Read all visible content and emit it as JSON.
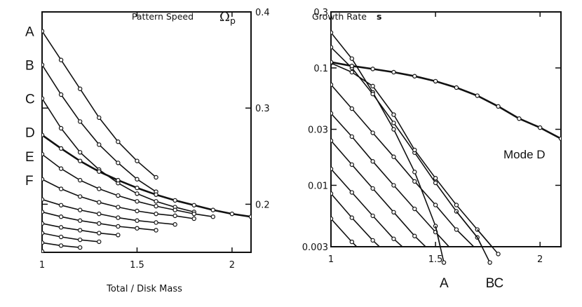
{
  "chart_data": [
    {
      "id": "left",
      "type": "line",
      "title": "Pattern Speed",
      "title_symbol": "Ω",
      "title_subscript": "p",
      "xlabel": "Total / Disk Mass",
      "xlim": [
        1.0,
        2.1
      ],
      "ylim": [
        0.15,
        0.4
      ],
      "y_scale": "linear",
      "x_ticks": [
        {
          "v": 1,
          "label": "1"
        },
        {
          "v": 1.5,
          "label": "1.5"
        },
        {
          "v": 2,
          "label": "2"
        }
      ],
      "y_ticks": [
        {
          "v": 0.2,
          "label": "0.2"
        },
        {
          "v": 0.3,
          "label": "0.3"
        },
        {
          "v": 0.4,
          "label": "0.4"
        }
      ],
      "y_axis_labels_side": "right",
      "series": [
        {
          "name": "A",
          "label_at": 0.38,
          "points": [
            [
              1.0,
              0.38
            ],
            [
              1.1,
              0.35
            ],
            [
              1.2,
              0.32
            ],
            [
              1.3,
              0.29
            ],
            [
              1.4,
              0.265
            ],
            [
              1.5,
              0.245
            ],
            [
              1.6,
              0.228
            ]
          ],
          "markers": true,
          "thick": false
        },
        {
          "name": "B",
          "label_at": 0.345,
          "points": [
            [
              1.0,
              0.345
            ],
            [
              1.1,
              0.314
            ],
            [
              1.2,
              0.286
            ],
            [
              1.3,
              0.262
            ],
            [
              1.4,
              0.243
            ],
            [
              1.5,
              0.226
            ],
            [
              1.6,
              0.213
            ]
          ],
          "markers": true,
          "thick": false
        },
        {
          "name": "C",
          "label_at": 0.31,
          "points": [
            [
              1.0,
              0.31
            ],
            [
              1.1,
              0.279
            ],
            [
              1.2,
              0.254
            ],
            [
              1.3,
              0.236
            ],
            [
              1.4,
              0.222
            ],
            [
              1.5,
              0.211
            ],
            [
              1.6,
              0.203
            ],
            [
              1.7,
              0.197
            ],
            [
              1.8,
              0.192
            ]
          ],
          "markers": true,
          "thick": false
        },
        {
          "name": "D",
          "label_at": 0.275,
          "points": [
            [
              1.0,
              0.272
            ],
            [
              1.1,
              0.258
            ],
            [
              1.2,
              0.245
            ],
            [
              1.3,
              0.234
            ],
            [
              1.4,
              0.225
            ],
            [
              1.5,
              0.217
            ],
            [
              1.6,
              0.21
            ],
            [
              1.7,
              0.204
            ],
            [
              1.8,
              0.199
            ],
            [
              1.9,
              0.194
            ],
            [
              2.0,
              0.19
            ],
            [
              2.1,
              0.187
            ]
          ],
          "markers": true,
          "thick": true
        },
        {
          "name": "E",
          "label_at": 0.25,
          "points": [
            [
              1.0,
              0.252
            ],
            [
              1.1,
              0.237
            ],
            [
              1.2,
              0.225
            ],
            [
              1.3,
              0.216
            ],
            [
              1.4,
              0.209
            ],
            [
              1.5,
              0.203
            ],
            [
              1.6,
              0.198
            ],
            [
              1.7,
              0.194
            ],
            [
              1.8,
              0.19
            ],
            [
              1.9,
              0.187
            ]
          ],
          "markers": true,
          "thick": false
        },
        {
          "name": "F",
          "label_at": 0.225,
          "points": [
            [
              1.0,
              0.226
            ],
            [
              1.1,
              0.216
            ],
            [
              1.2,
              0.208
            ],
            [
              1.3,
              0.202
            ],
            [
              1.4,
              0.197
            ],
            [
              1.5,
              0.193
            ],
            [
              1.6,
              0.19
            ],
            [
              1.7,
              0.188
            ],
            [
              1.8,
              0.185
            ]
          ],
          "markers": true,
          "thick": false
        },
        {
          "name": "",
          "points": [
            [
              1.0,
              0.205
            ],
            [
              1.1,
              0.199
            ],
            [
              1.2,
              0.194
            ],
            [
              1.3,
              0.19
            ],
            [
              1.4,
              0.186
            ],
            [
              1.5,
              0.183
            ],
            [
              1.6,
              0.181
            ],
            [
              1.7,
              0.179
            ]
          ],
          "markers": true,
          "thick": false
        },
        {
          "name": "",
          "points": [
            [
              1.0,
              0.192
            ],
            [
              1.1,
              0.187
            ],
            [
              1.2,
              0.183
            ],
            [
              1.3,
              0.18
            ],
            [
              1.4,
              0.177
            ],
            [
              1.5,
              0.175
            ],
            [
              1.6,
              0.173
            ]
          ],
          "markers": true,
          "thick": false
        },
        {
          "name": "",
          "points": [
            [
              1.0,
              0.18
            ],
            [
              1.1,
              0.176
            ],
            [
              1.2,
              0.173
            ],
            [
              1.3,
              0.17
            ],
            [
              1.4,
              0.168
            ]
          ],
          "markers": true,
          "thick": false
        },
        {
          "name": "",
          "points": [
            [
              1.0,
              0.17
            ],
            [
              1.1,
              0.166
            ],
            [
              1.2,
              0.163
            ],
            [
              1.3,
              0.161
            ]
          ],
          "markers": true,
          "thick": false
        },
        {
          "name": "",
          "points": [
            [
              1.0,
              0.16
            ],
            [
              1.1,
              0.157
            ],
            [
              1.2,
              0.155
            ]
          ],
          "markers": true,
          "thick": false
        },
        {
          "name": "",
          "points": [
            [
              1.0,
              0.151
            ]
          ],
          "markers": true,
          "thick": false
        }
      ]
    },
    {
      "id": "right",
      "type": "line",
      "title": "Growth Rate",
      "title_symbol": "s",
      "xlabel": "",
      "xlim": [
        1.0,
        2.1
      ],
      "ylim": [
        0.003,
        0.3
      ],
      "y_scale": "log",
      "x_ticks": [
        {
          "v": 1,
          "label": "1"
        },
        {
          "v": 1.5,
          "label": "1.5"
        },
        {
          "v": 2,
          "label": "2"
        }
      ],
      "y_ticks": [
        {
          "v": 0.003,
          "label": "0.003"
        },
        {
          "v": 0.01,
          "label": "0.01"
        },
        {
          "v": 0.03,
          "label": "0.03"
        },
        {
          "v": 0.1,
          "label": "0.1"
        },
        {
          "v": 0.3,
          "label": "0.3"
        }
      ],
      "y_axis_labels_side": "left",
      "mode_d_label": "Mode D",
      "series": [
        {
          "name": "A",
          "points": [
            [
              1.0,
              0.2
            ],
            [
              1.1,
              0.12
            ],
            [
              1.2,
              0.062
            ],
            [
              1.3,
              0.03
            ],
            [
              1.4,
              0.013
            ],
            [
              1.5,
              0.0045
            ],
            [
              1.54,
              0.0022
            ]
          ],
          "markers": true,
          "thick": false
        },
        {
          "name": "B",
          "points": [
            [
              1.0,
              0.15
            ],
            [
              1.1,
              0.1
            ],
            [
              1.2,
              0.06
            ],
            [
              1.3,
              0.034
            ],
            [
              1.4,
              0.019
            ],
            [
              1.5,
              0.0105
            ],
            [
              1.6,
              0.006
            ],
            [
              1.7,
              0.0036
            ],
            [
              1.76,
              0.0022
            ]
          ],
          "markers": true,
          "thick": false
        },
        {
          "name": "C",
          "points": [
            [
              1.0,
              0.11
            ],
            [
              1.1,
              0.092
            ],
            [
              1.2,
              0.07
            ],
            [
              1.3,
              0.04
            ],
            [
              1.4,
              0.02
            ],
            [
              1.5,
              0.0115
            ],
            [
              1.6,
              0.0068
            ],
            [
              1.7,
              0.0042
            ],
            [
              1.8,
              0.0026
            ]
          ],
          "markers": true,
          "thick": false
        },
        {
          "name": "D",
          "points": [
            [
              1.0,
              0.112
            ],
            [
              1.1,
              0.104
            ],
            [
              1.2,
              0.098
            ],
            [
              1.3,
              0.092
            ],
            [
              1.4,
              0.085
            ],
            [
              1.5,
              0.077
            ],
            [
              1.6,
              0.068
            ],
            [
              1.7,
              0.058
            ],
            [
              1.8,
              0.047
            ],
            [
              1.9,
              0.037
            ],
            [
              2.0,
              0.031
            ],
            [
              2.1,
              0.025
            ]
          ],
          "markers": true,
          "thick": true
        },
        {
          "name": "",
          "points": [
            [
              1.0,
              0.072
            ],
            [
              1.1,
              0.045
            ],
            [
              1.2,
              0.028
            ],
            [
              1.3,
              0.0175
            ],
            [
              1.4,
              0.0108
            ],
            [
              1.5,
              0.0068
            ],
            [
              1.6,
              0.0042
            ],
            [
              1.7,
              0.0028
            ]
          ],
          "markers": true,
          "thick": false
        },
        {
          "name": "",
          "points": [
            [
              1.0,
              0.041
            ],
            [
              1.1,
              0.026
            ],
            [
              1.2,
              0.016
            ],
            [
              1.3,
              0.01
            ],
            [
              1.4,
              0.0063
            ],
            [
              1.5,
              0.004
            ],
            [
              1.58,
              0.0028
            ]
          ],
          "markers": true,
          "thick": false
        },
        {
          "name": "",
          "points": [
            [
              1.0,
              0.024
            ],
            [
              1.1,
              0.015
            ],
            [
              1.2,
              0.0094
            ],
            [
              1.3,
              0.0059
            ],
            [
              1.4,
              0.0037
            ],
            [
              1.47,
              0.0028
            ]
          ],
          "markers": true,
          "thick": false
        },
        {
          "name": "",
          "points": [
            [
              1.0,
              0.0138
            ],
            [
              1.1,
              0.0087
            ],
            [
              1.2,
              0.0055
            ],
            [
              1.3,
              0.0035
            ],
            [
              1.36,
              0.0028
            ]
          ],
          "markers": true,
          "thick": false
        },
        {
          "name": "",
          "points": [
            [
              1.0,
              0.0085
            ],
            [
              1.1,
              0.0053
            ],
            [
              1.2,
              0.0034
            ],
            [
              1.25,
              0.0028
            ]
          ],
          "markers": true,
          "thick": false
        },
        {
          "name": "",
          "points": [
            [
              1.0,
              0.0052
            ],
            [
              1.1,
              0.0033
            ],
            [
              1.14,
              0.0028
            ]
          ],
          "markers": true,
          "thick": false
        }
      ]
    }
  ]
}
